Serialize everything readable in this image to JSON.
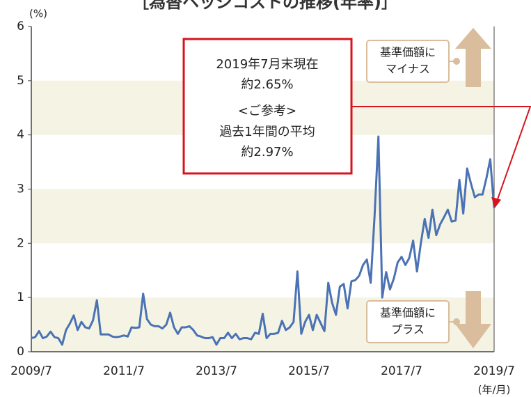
{
  "chart_data": {
    "type": "line",
    "title": "［為替ヘッジコストの推移(年率)］",
    "y_unit": "(%)",
    "x_unit": "(年/月)",
    "categories": [
      "2009/7",
      null,
      null,
      null,
      null,
      null,
      null,
      null,
      null,
      null,
      null,
      null,
      null,
      null,
      null,
      null,
      null,
      null,
      null,
      null,
      null,
      null,
      null,
      null,
      "2011/7",
      null,
      null,
      null,
      null,
      null,
      null,
      null,
      null,
      null,
      null,
      null,
      null,
      null,
      null,
      null,
      null,
      null,
      null,
      null,
      null,
      null,
      null,
      null,
      "2013/7",
      null,
      null,
      null,
      null,
      null,
      null,
      null,
      null,
      null,
      null,
      null,
      null,
      null,
      null,
      null,
      null,
      null,
      null,
      null,
      null,
      null,
      null,
      null,
      "2015/7",
      null,
      null,
      null,
      null,
      null,
      null,
      null,
      null,
      null,
      null,
      null,
      null,
      null,
      null,
      null,
      null,
      null,
      null,
      null,
      null,
      null,
      null,
      null,
      "2017/7",
      null,
      null,
      null,
      null,
      null,
      null,
      null,
      null,
      null,
      null,
      null,
      null,
      null,
      null,
      null,
      null,
      null,
      null,
      null,
      null,
      null,
      null,
      null,
      "2019/7"
    ],
    "series": [
      {
        "name": "為替ヘッジコスト",
        "color": "#4a72b4",
        "values": [
          0.25,
          0.27,
          0.38,
          0.25,
          0.28,
          0.37,
          0.27,
          0.25,
          0.13,
          0.4,
          0.52,
          0.67,
          0.4,
          0.55,
          0.45,
          0.43,
          0.58,
          0.95,
          0.32,
          0.32,
          0.32,
          0.28,
          0.27,
          0.28,
          0.3,
          0.28,
          0.45,
          0.44,
          0.45,
          1.07,
          0.6,
          0.5,
          0.47,
          0.47,
          0.43,
          0.5,
          0.72,
          0.45,
          0.33,
          0.45,
          0.45,
          0.47,
          0.4,
          0.3,
          0.28,
          0.25,
          0.25,
          0.27,
          0.13,
          0.25,
          0.25,
          0.35,
          0.25,
          0.33,
          0.23,
          0.25,
          0.25,
          0.23,
          0.35,
          0.33,
          0.7,
          0.25,
          0.33,
          0.33,
          0.35,
          0.57,
          0.4,
          0.45,
          0.55,
          1.48,
          0.33,
          0.55,
          0.68,
          0.4,
          0.68,
          0.53,
          0.38,
          1.27,
          0.9,
          0.68,
          1.2,
          1.25,
          0.8,
          1.3,
          1.32,
          1.4,
          1.6,
          1.7,
          1.27,
          2.5,
          3.97,
          1.0,
          1.47,
          1.15,
          1.35,
          1.65,
          1.75,
          1.6,
          1.73,
          2.05,
          1.48,
          2.0,
          2.45,
          2.1,
          2.62,
          2.15,
          2.35,
          2.48,
          2.62,
          2.4,
          2.42,
          3.17,
          2.55,
          3.38,
          3.1,
          2.85,
          2.9,
          2.9,
          3.2,
          3.55,
          2.65
        ]
      }
    ],
    "ylim": [
      0,
      6
    ],
    "yticks": [
      0,
      1,
      2,
      3,
      4,
      5,
      6
    ],
    "band_color": "#f5f3e4",
    "annotation": {
      "lines": [
        "2019年7月末現在",
        "約2.65%",
        "<ご参考>",
        "過去1年間の平均",
        "約2.97%"
      ],
      "color": "#d7141e"
    },
    "upper_note": [
      "基準価額に",
      "マイナス"
    ],
    "lower_note": [
      "基準価額に",
      "プラス"
    ],
    "arrow_color": "#d9bd9c"
  }
}
